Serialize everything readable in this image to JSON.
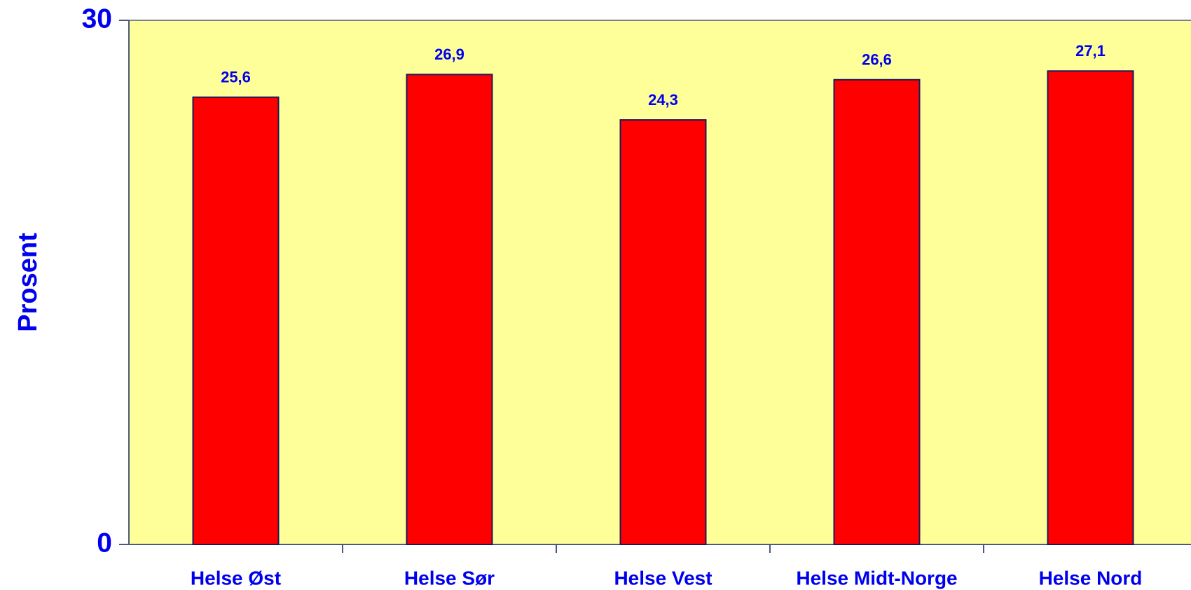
{
  "chart_data": {
    "type": "bar",
    "y_label": "Prosent",
    "categories": [
      "Helse Øst",
      "Helse Sør",
      "Helse Vest",
      "Helse Midt-Norge",
      "Helse Nord"
    ],
    "values": [
      25.6,
      26.9,
      24.3,
      26.6,
      27.1
    ],
    "value_labels": [
      "25,6",
      "26,9",
      "24,3",
      "26,6",
      "27,1"
    ],
    "color": "#ff0000",
    "background": "#ffff99",
    "ylim": [
      0,
      30
    ],
    "yticks": [
      0,
      30
    ],
    "grid": false
  }
}
